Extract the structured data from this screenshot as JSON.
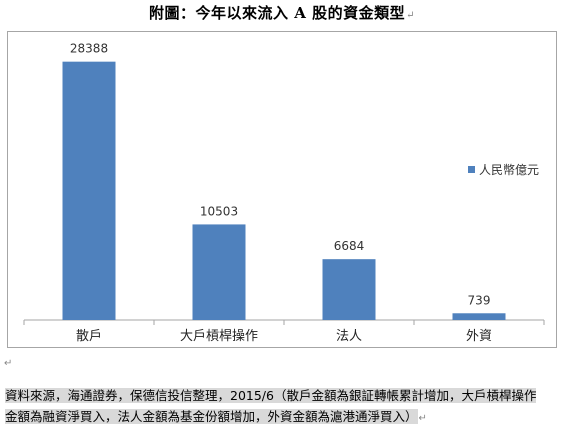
{
  "title": "附圖：今年以來流入 A 股的資金類型",
  "paragraph_mark": "↵",
  "chart_data": {
    "type": "bar",
    "categories": [
      "散戶",
      "大戶槓桿操作",
      "法人",
      "外資"
    ],
    "series": [
      {
        "name": "人民幣億元",
        "values": [
          28388,
          10503,
          6684,
          739
        ]
      }
    ],
    "data_labels": [
      "28388",
      "10503",
      "6684",
      "739"
    ],
    "ylim": [
      0,
      30000
    ],
    "bar_color": "#4f81bd",
    "grid": false,
    "legend_position": "right"
  },
  "note": {
    "line1": "資料來源，海通證券，保德信投信整理，2015/6（散戶金額為銀証轉帳累計增加，大戶槓桿操作",
    "line2": "金額為融資淨買入，法人金額為基金份額增加，外資金額為滬港通淨買入）"
  }
}
